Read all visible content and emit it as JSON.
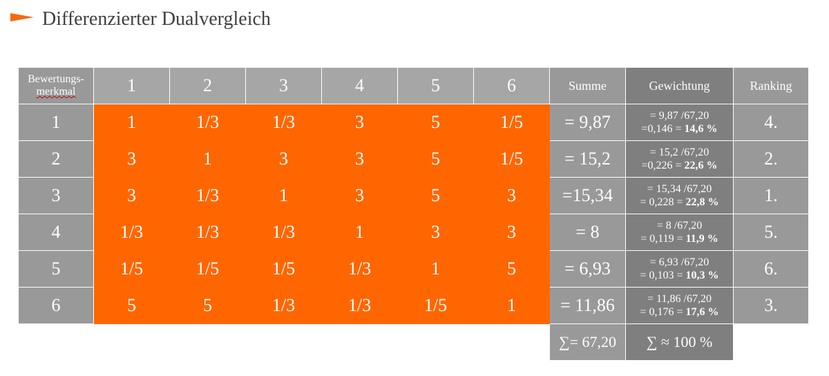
{
  "title": "Differenzierter Dualvergleich",
  "header": {
    "corner_line1": "Bewertungs-",
    "corner_line2": "merkmal",
    "columns": [
      "1",
      "2",
      "3",
      "4",
      "5",
      "6"
    ],
    "summe": "Summe",
    "gewichtung": "Gewichtung",
    "ranking": "Ranking"
  },
  "rows": [
    {
      "label": "1",
      "cells": [
        "1",
        "1/3",
        "1/3",
        "3",
        "5",
        "1/5"
      ],
      "sum": "= 9,87",
      "gew_line1": "= 9,87 /67,20",
      "gew_line2_pre": "=0,146 = ",
      "gew_pct": "14,6 %",
      "rank": "4."
    },
    {
      "label": "2",
      "cells": [
        "3",
        "1",
        "3",
        "3",
        "5",
        "1/5"
      ],
      "sum": "= 15,2",
      "gew_line1": "= 15,2 /67,20",
      "gew_line2_pre": "=0,226 = ",
      "gew_pct": "22,6 %",
      "rank": "2."
    },
    {
      "label": "3",
      "cells": [
        "3",
        "1/3",
        "1",
        "3",
        "5",
        "3"
      ],
      "sum": "=15,34",
      "gew_line1": "= 15,34 /67,20",
      "gew_line2_pre": "= 0,228 = ",
      "gew_pct": "22,8 %",
      "rank": "1."
    },
    {
      "label": "4",
      "cells": [
        "1/3",
        "1/3",
        "1/3",
        "1",
        "3",
        "3"
      ],
      "sum": "= 8",
      "gew_line1": "= 8 /67,20",
      "gew_line2_pre": "= 0,119 = ",
      "gew_pct": "11,9 %",
      "rank": "5."
    },
    {
      "label": "5",
      "cells": [
        "1/5",
        "1/5",
        "1/5",
        "1/3",
        "1",
        "5"
      ],
      "sum": "= 6,93",
      "gew_line1": "= 6,93 /67,20",
      "gew_line2_pre": "= 0,103 = ",
      "gew_pct": "10,3 %",
      "rank": "6."
    },
    {
      "label": "6",
      "cells": [
        "5",
        "5",
        "1/3",
        "1/3",
        "1/5",
        "1"
      ],
      "sum": "= 11,86",
      "gew_line1": "= 11,86 /67,20",
      "gew_line2_pre": "= 0,176 = ",
      "gew_pct": "17,6 %",
      "rank": "3."
    }
  ],
  "footer": {
    "sum_total": "∑= 67,20",
    "gew_total": "∑ ≈ 100 %"
  },
  "colors": {
    "accent": "#ff6600",
    "light_gray": "#a6a6a6",
    "mid_gray": "#999999",
    "dark_gray": "#7f7f7f"
  }
}
